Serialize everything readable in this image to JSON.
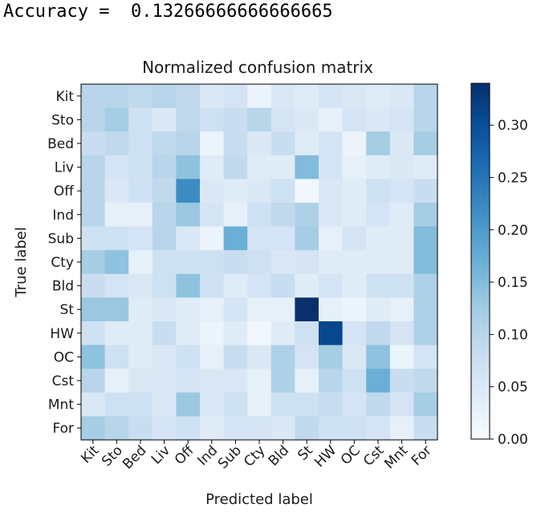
{
  "header": {
    "accuracy_label": "Accuracy = ",
    "accuracy_value": "0.13266666666666665"
  },
  "chart_data": {
    "type": "heatmap",
    "title": "Normalized confusion matrix",
    "xlabel": "Predicted label",
    "ylabel": "True label",
    "x_categories": [
      "Kit",
      "Sto",
      "Bed",
      "Liv",
      "Off",
      "Ind",
      "Sub",
      "Cty",
      "Bld",
      "St",
      "HW",
      "OC",
      "Cst",
      "Mnt",
      "For"
    ],
    "y_categories": [
      "Kit",
      "Sto",
      "Bed",
      "Liv",
      "Off",
      "Ind",
      "Sub",
      "Cty",
      "Bld",
      "St",
      "HW",
      "OC",
      "Cst",
      "Mnt",
      "For"
    ],
    "colorbar": {
      "min": 0.0,
      "max": 0.34,
      "ticks": [
        0.0,
        0.05,
        0.1,
        0.15,
        0.2,
        0.25,
        0.3
      ],
      "tick_labels": [
        "0.00",
        "0.05",
        "0.10",
        "0.15",
        "0.20",
        "0.25",
        "0.30"
      ],
      "colormap": "Blues"
    },
    "values": [
      [
        0.1,
        0.1,
        0.09,
        0.1,
        0.09,
        0.05,
        0.06,
        0.02,
        0.05,
        0.04,
        0.06,
        0.05,
        0.04,
        0.05,
        0.1
      ],
      [
        0.1,
        0.12,
        0.07,
        0.05,
        0.09,
        0.07,
        0.08,
        0.1,
        0.06,
        0.05,
        0.03,
        0.06,
        0.05,
        0.06,
        0.1
      ],
      [
        0.08,
        0.09,
        0.07,
        0.09,
        0.1,
        0.02,
        0.08,
        0.05,
        0.08,
        0.04,
        0.06,
        0.02,
        0.12,
        0.05,
        0.12
      ],
      [
        0.1,
        0.06,
        0.07,
        0.1,
        0.14,
        0.04,
        0.09,
        0.04,
        0.04,
        0.15,
        0.06,
        0.03,
        0.04,
        0.05,
        0.04
      ],
      [
        0.1,
        0.05,
        0.07,
        0.09,
        0.22,
        0.05,
        0.04,
        0.05,
        0.07,
        0.01,
        0.05,
        0.04,
        0.07,
        0.06,
        0.08
      ],
      [
        0.1,
        0.03,
        0.03,
        0.1,
        0.13,
        0.06,
        0.03,
        0.07,
        0.09,
        0.11,
        0.05,
        0.04,
        0.06,
        0.04,
        0.12
      ],
      [
        0.07,
        0.07,
        0.06,
        0.1,
        0.05,
        0.02,
        0.17,
        0.06,
        0.06,
        0.12,
        0.03,
        0.06,
        0.04,
        0.04,
        0.15
      ],
      [
        0.12,
        0.14,
        0.03,
        0.07,
        0.07,
        0.07,
        0.08,
        0.07,
        0.05,
        0.06,
        0.04,
        0.04,
        0.04,
        0.04,
        0.15
      ],
      [
        0.08,
        0.06,
        0.05,
        0.07,
        0.14,
        0.07,
        0.04,
        0.06,
        0.08,
        0.04,
        0.06,
        0.04,
        0.07,
        0.07,
        0.11
      ],
      [
        0.13,
        0.13,
        0.04,
        0.05,
        0.04,
        0.03,
        0.06,
        0.03,
        0.03,
        0.34,
        0.03,
        0.02,
        0.04,
        0.03,
        0.11
      ],
      [
        0.07,
        0.04,
        0.04,
        0.08,
        0.04,
        0.02,
        0.04,
        0.01,
        0.04,
        0.07,
        0.31,
        0.06,
        0.09,
        0.06,
        0.11
      ],
      [
        0.14,
        0.07,
        0.04,
        0.05,
        0.07,
        0.03,
        0.08,
        0.05,
        0.11,
        0.06,
        0.12,
        0.05,
        0.14,
        0.02,
        0.06
      ],
      [
        0.1,
        0.03,
        0.05,
        0.05,
        0.06,
        0.05,
        0.05,
        0.03,
        0.11,
        0.03,
        0.1,
        0.07,
        0.17,
        0.08,
        0.09
      ],
      [
        0.05,
        0.07,
        0.07,
        0.05,
        0.13,
        0.05,
        0.07,
        0.03,
        0.07,
        0.07,
        0.08,
        0.06,
        0.09,
        0.06,
        0.12
      ],
      [
        0.12,
        0.1,
        0.08,
        0.06,
        0.07,
        0.04,
        0.06,
        0.06,
        0.05,
        0.09,
        0.07,
        0.07,
        0.06,
        0.03,
        0.08
      ]
    ],
    "grid": false,
    "legend": "colorbar-right"
  }
}
